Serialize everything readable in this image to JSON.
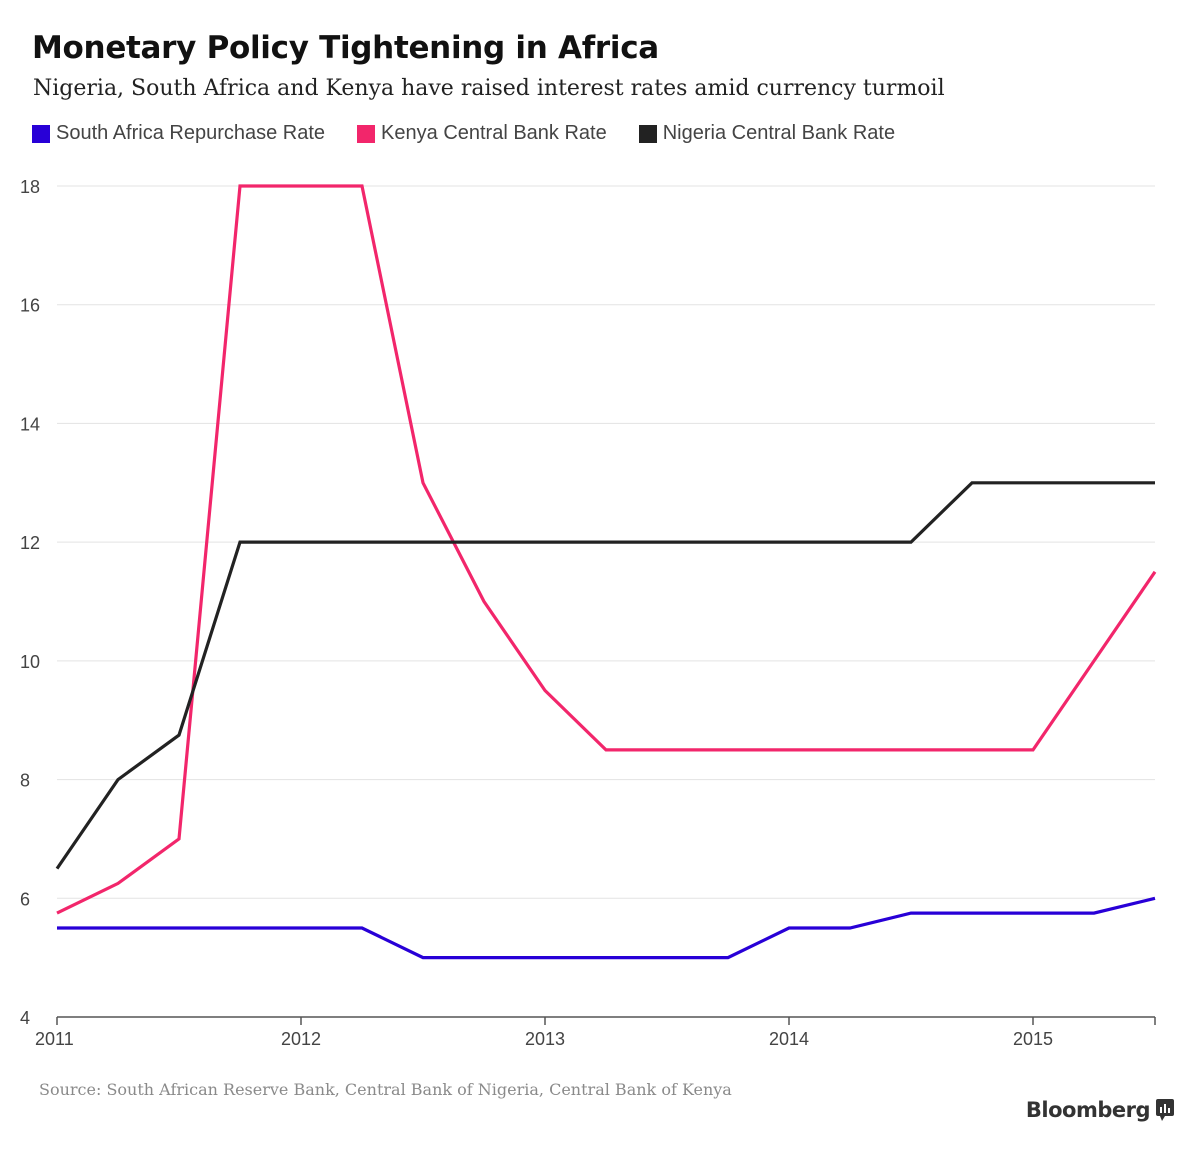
{
  "header": {
    "title": "Monetary Policy Tightening in Africa",
    "subtitle": "Nigeria, South Africa and Kenya have raised interest rates amid currency turmoil"
  },
  "footer": {
    "source": "Source: South African Reserve Bank, Central Bank of Nigeria, Central Bank of Kenya",
    "brand": "Bloomberg"
  },
  "icons": {
    "brand": "bloomberg-chart-icon"
  },
  "chart_data": {
    "type": "line",
    "title": "Monetary Policy Tightening in Africa",
    "subtitle": "Nigeria, South Africa and Kenya have raised interest rates amid currency turmoil",
    "xlabel": "",
    "ylabel": "",
    "xlim": [
      2011,
      2015.5
    ],
    "ylim": [
      4,
      18
    ],
    "x_ticks": [
      2011,
      2012,
      2013,
      2014,
      2015
    ],
    "y_ticks": [
      4,
      6,
      8,
      10,
      12,
      14,
      16,
      18
    ],
    "grid": true,
    "legend_position": "top-left",
    "x": [
      2011,
      2011.25,
      2011.5,
      2011.75,
      2012,
      2012.25,
      2012.5,
      2012.75,
      2013,
      2013.25,
      2013.5,
      2013.75,
      2014,
      2014.25,
      2014.5,
      2014.75,
      2015,
      2015.25,
      2015.5
    ],
    "series": [
      {
        "name": "South Africa Repurchase Rate",
        "color": "#2800d7",
        "values": [
          5.5,
          5.5,
          5.5,
          5.5,
          5.5,
          5.5,
          5.0,
          5.0,
          5.0,
          5.0,
          5.0,
          5.0,
          5.5,
          5.5,
          5.75,
          5.75,
          5.75,
          5.75,
          6.0
        ]
      },
      {
        "name": "Kenya Central Bank Rate",
        "color": "#f2266b",
        "values": [
          5.75,
          6.25,
          7.0,
          18.0,
          18.0,
          18.0,
          13.0,
          11.0,
          9.5,
          8.5,
          8.5,
          8.5,
          8.5,
          8.5,
          8.5,
          8.5,
          8.5,
          10.0,
          11.5
        ]
      },
      {
        "name": "Nigeria Central Bank Rate",
        "color": "#222222",
        "values": [
          6.5,
          8.0,
          8.75,
          12.0,
          12.0,
          12.0,
          12.0,
          12.0,
          12.0,
          12.0,
          12.0,
          12.0,
          12.0,
          12.0,
          12.0,
          13.0,
          13.0,
          13.0,
          13.0
        ]
      }
    ]
  }
}
